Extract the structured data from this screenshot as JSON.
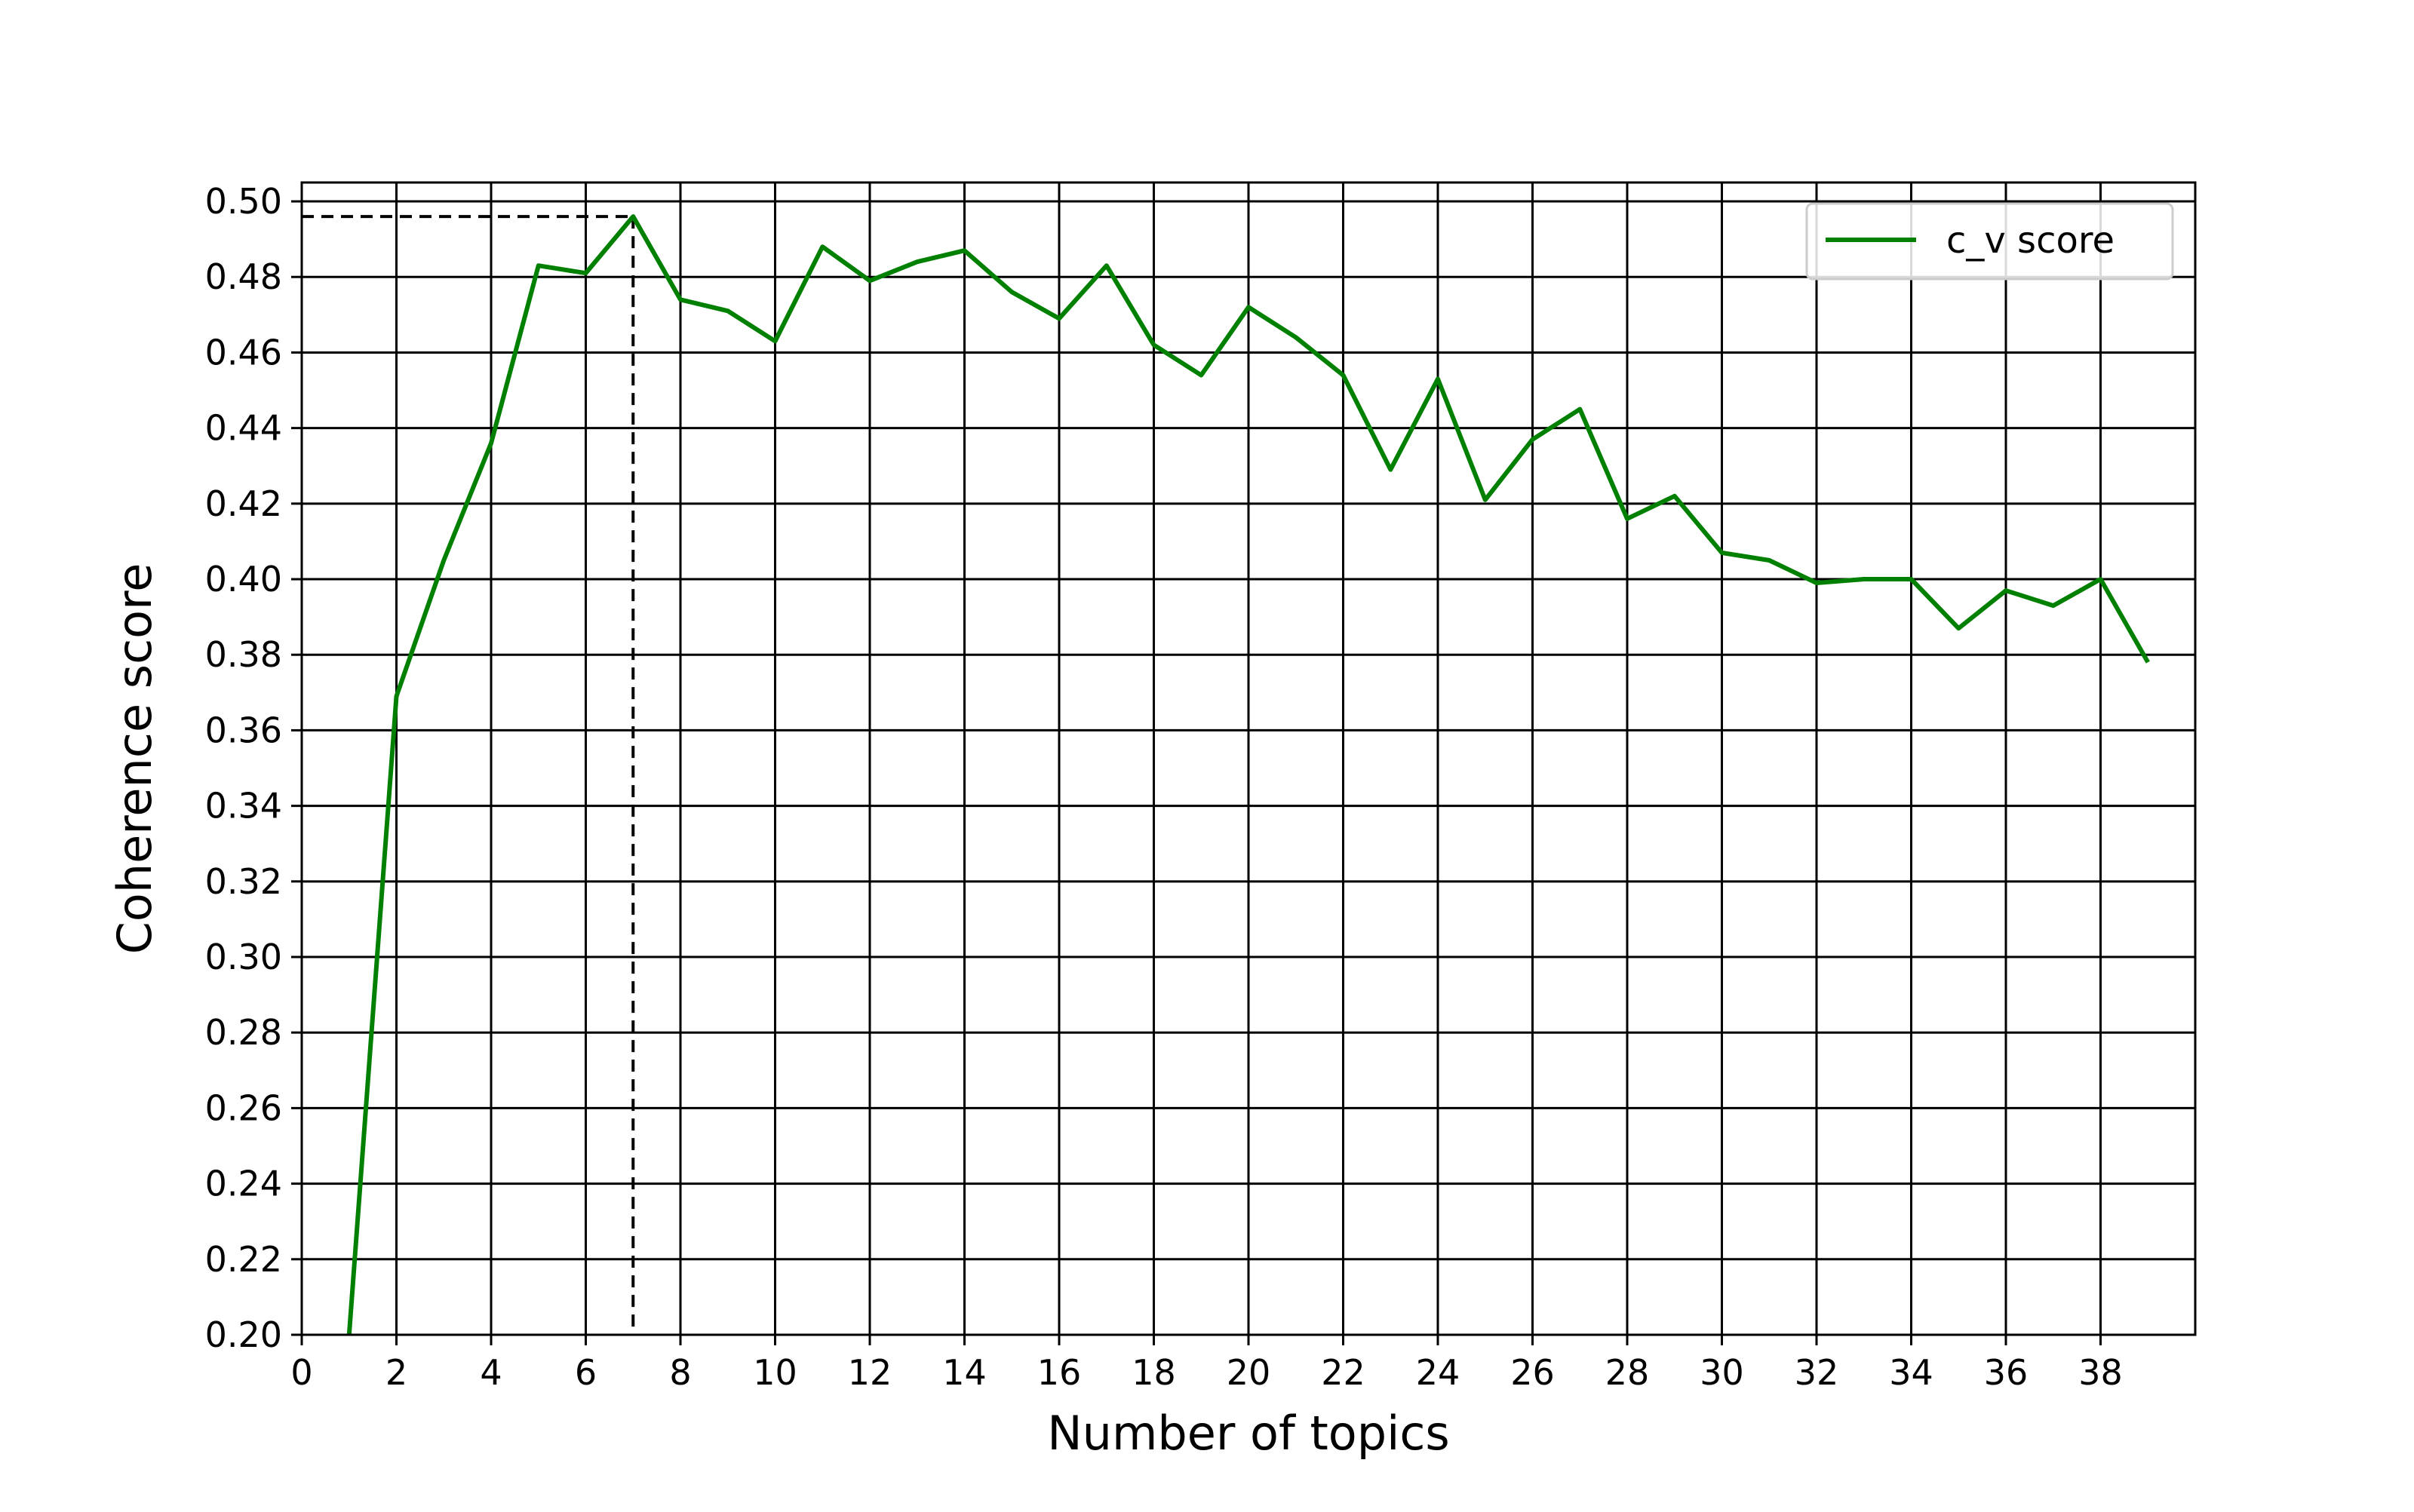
{
  "chart_data": {
    "type": "line",
    "title": "",
    "xlabel": "Number of topics",
    "ylabel": "Coherence score",
    "xlim": [
      0,
      40
    ],
    "ylim": [
      0.2,
      0.505
    ],
    "x_ticks": [
      "0",
      "2",
      "4",
      "6",
      "8",
      "10",
      "12",
      "14",
      "16",
      "18",
      "20",
      "22",
      "24",
      "26",
      "28",
      "30",
      "32",
      "34",
      "36",
      "38"
    ],
    "y_ticks": [
      "0.20",
      "0.22",
      "0.24",
      "0.26",
      "0.28",
      "0.30",
      "0.32",
      "0.34",
      "0.36",
      "0.38",
      "0.40",
      "0.42",
      "0.44",
      "0.46",
      "0.48",
      "0.50"
    ],
    "grid": true,
    "legend_position": "top-right",
    "series": [
      {
        "name": "c_v score",
        "color": "#008000",
        "x": [
          1,
          2,
          3,
          4,
          5,
          6,
          7,
          8,
          9,
          10,
          11,
          12,
          13,
          14,
          15,
          16,
          17,
          18,
          19,
          20,
          21,
          22,
          23,
          24,
          25,
          26,
          27,
          28,
          29,
          30,
          31,
          32,
          33,
          34,
          35,
          36,
          37,
          38,
          39
        ],
        "values": [
          0.2,
          0.369,
          0.405,
          0.436,
          0.483,
          0.481,
          0.496,
          0.474,
          0.471,
          0.463,
          0.488,
          0.479,
          0.484,
          0.487,
          0.476,
          0.469,
          0.483,
          0.462,
          0.454,
          0.472,
          0.464,
          0.454,
          0.429,
          0.453,
          0.421,
          0.437,
          0.445,
          0.416,
          0.422,
          0.407,
          0.405,
          0.399,
          0.4,
          0.4,
          0.387,
          0.397,
          0.393,
          0.4,
          0.378
        ]
      }
    ],
    "annotations": [
      {
        "type": "dashed-marker",
        "x": 7,
        "y": 0.496,
        "color": "#000000"
      }
    ]
  }
}
